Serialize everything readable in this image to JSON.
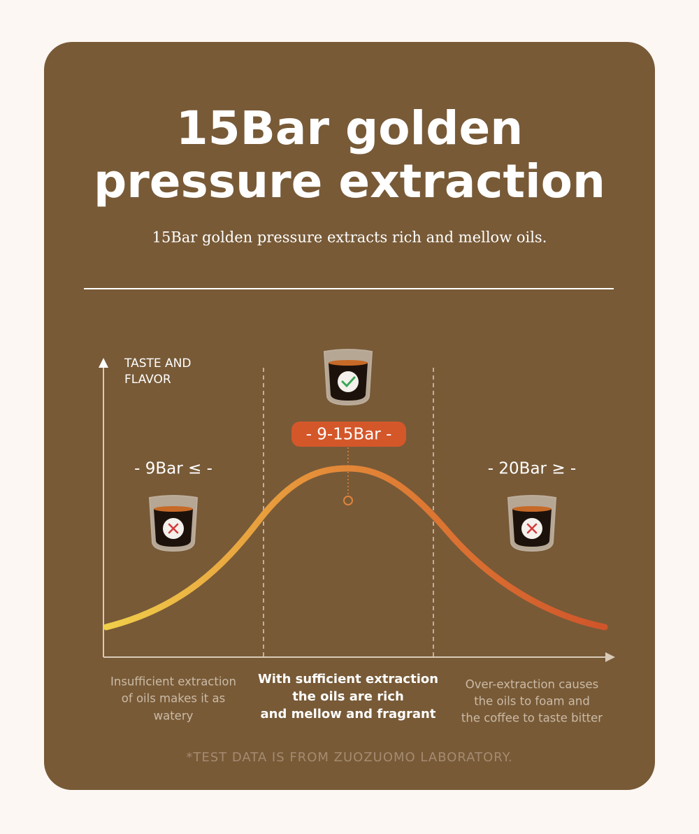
{
  "header": {
    "title": [
      "15Bar golden",
      "pressure extraction"
    ],
    "subtitle": "15Bar golden pressure extracts rich and mellow oils."
  },
  "diagram": {
    "axis_label": [
      "TASTE AND",
      "FLAVOR"
    ],
    "zones": [
      {
        "label": "- 9Bar ≤ -",
        "description": [
          "Insufficient extraction",
          "of oils makes it as",
          "watery"
        ]
      },
      {
        "label": "- 9-15Bar -",
        "description": [
          "With sufficient extraction",
          "the oils are rich",
          "and mellow and fragrant"
        ]
      },
      {
        "label": "- 20Bar ≥ -",
        "description": [
          "Over-extraction causes",
          "the oils to foam and",
          "the coffee to taste bitter"
        ]
      }
    ],
    "footnote": "*TEST DATA IS FROM ZUOZUOMO LABORATORY."
  }
}
